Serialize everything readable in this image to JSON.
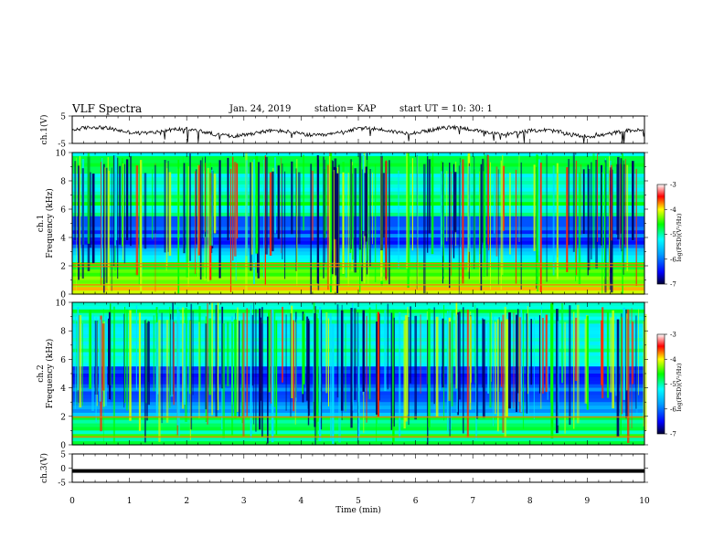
{
  "header": {
    "title": "VLF Spectra",
    "date": "Jan. 24, 2019",
    "station": "station= KAP",
    "start": "start  UT  =   10: 30: 1"
  },
  "chart_data": [
    {
      "type": "line",
      "panel": "ch1-waveform",
      "ylabel": "ch.1(V)",
      "ylim": [
        -5,
        5
      ],
      "yticks": [
        "5",
        "-5"
      ],
      "xlim": [
        0,
        10
      ],
      "series": [
        {
          "values": []
        }
      ]
    },
    {
      "type": "heatmap",
      "panel": "ch1-spectrogram",
      "ylabel": "ch.1\nFrequency (kHz)",
      "ylim": [
        0,
        10
      ],
      "yticks": [
        "0",
        "2",
        "4",
        "6",
        "8",
        "10"
      ],
      "xlim": [
        0,
        10
      ],
      "colorbar": {
        "label": "log(PSD)(V²/Hz)",
        "range": [
          -7,
          -3
        ],
        "ticks": [
          "-3",
          "-4",
          "-5",
          "-6",
          "-7"
        ]
      }
    },
    {
      "type": "heatmap",
      "panel": "ch2-spectrogram",
      "ylabel": "ch.2\nFrequency (kHz)",
      "ylim": [
        0,
        10
      ],
      "yticks": [
        "0",
        "2",
        "4",
        "6",
        "8",
        "10"
      ],
      "xlim": [
        0,
        10
      ],
      "colorbar": {
        "label": "log(PSD)(V²/Hz)",
        "range": [
          -7,
          -3
        ],
        "ticks": [
          "-3",
          "-4",
          "-5",
          "-6",
          "-7"
        ]
      }
    },
    {
      "type": "line",
      "panel": "ch3-waveform",
      "ylabel": "ch.3(V)",
      "ylim": [
        -5,
        5
      ],
      "yticks": [
        "5",
        "0",
        "-5"
      ],
      "xlim": [
        0,
        10
      ],
      "series": [
        {
          "values": [
            -1,
            -1
          ]
        }
      ]
    }
  ],
  "xaxis": {
    "label": "Time (min)",
    "ticks": [
      "0",
      "1",
      "2",
      "3",
      "4",
      "5",
      "6",
      "7",
      "8",
      "9",
      "10"
    ]
  },
  "colors": {
    "black": "#000000",
    "frame": "#000000"
  }
}
